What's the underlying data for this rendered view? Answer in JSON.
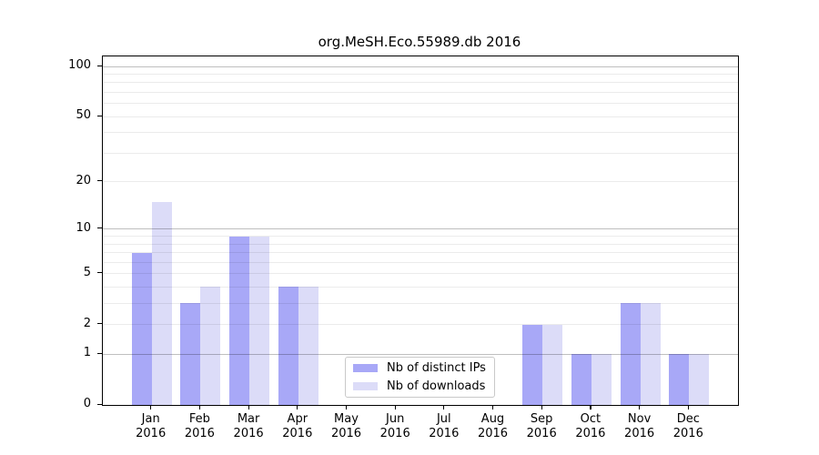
{
  "title": "org.MeSH.Eco.55989.db 2016",
  "chart_data": {
    "type": "bar",
    "title": "org.MeSH.Eco.55989.db 2016",
    "xlabel": "",
    "ylabel": "",
    "yscale": "log1p",
    "ylim": [
      0,
      115
    ],
    "grid": true,
    "legend_position": "lower center",
    "categories": [
      {
        "month": "Jan",
        "year": "2016"
      },
      {
        "month": "Feb",
        "year": "2016"
      },
      {
        "month": "Mar",
        "year": "2016"
      },
      {
        "month": "Apr",
        "year": "2016"
      },
      {
        "month": "May",
        "year": "2016"
      },
      {
        "month": "Jun",
        "year": "2016"
      },
      {
        "month": "Jul",
        "year": "2016"
      },
      {
        "month": "Aug",
        "year": "2016"
      },
      {
        "month": "Sep",
        "year": "2016"
      },
      {
        "month": "Oct",
        "year": "2016"
      },
      {
        "month": "Nov",
        "year": "2016"
      },
      {
        "month": "Dec",
        "year": "2016"
      }
    ],
    "series": [
      {
        "name": "Nb of distinct IPs",
        "color": "#a8a8f7",
        "values": [
          7,
          3,
          9,
          4,
          0,
          0,
          0,
          0,
          2,
          1,
          3,
          1
        ]
      },
      {
        "name": "Nb of downloads",
        "color": "#dcdcf8",
        "values": [
          15,
          4,
          9,
          4,
          0,
          0,
          0,
          0,
          2,
          1,
          3,
          1
        ]
      }
    ],
    "y_axis": {
      "labeled_ticks": [
        0,
        1,
        2,
        5,
        10,
        20,
        50,
        100
      ],
      "major_gridlines": [
        1,
        10,
        100
      ],
      "minor_gridlines": [
        2,
        3,
        4,
        5,
        6,
        7,
        8,
        9,
        20,
        30,
        40,
        50,
        60,
        70,
        80,
        90
      ]
    }
  },
  "colors": {
    "background": "#ffffff",
    "spine": "#000000",
    "major_grid": "rgba(0,0,0,0.25)",
    "minor_grid": "rgba(0,0,0,0.08)",
    "text": "#000000"
  }
}
